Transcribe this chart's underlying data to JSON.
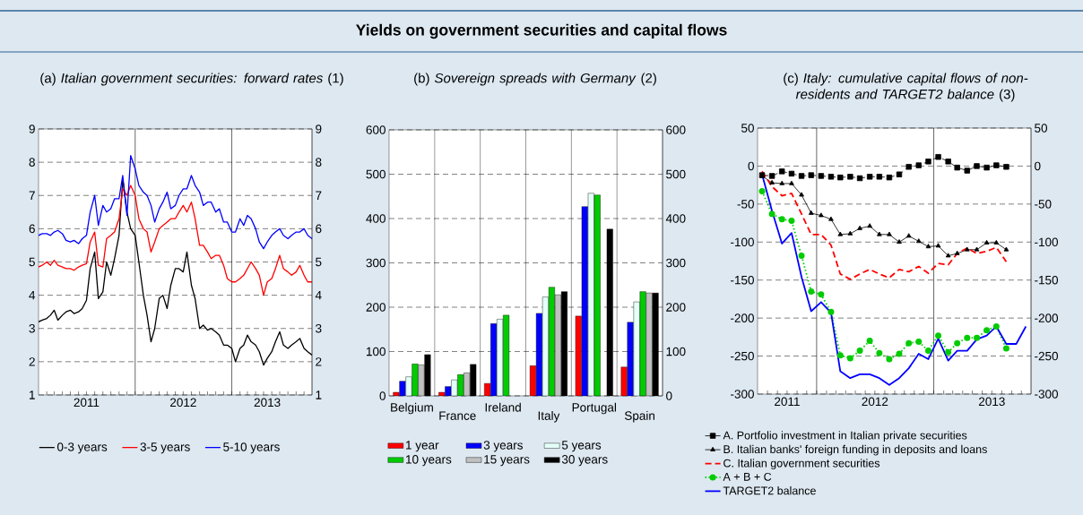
{
  "chart_data": [
    {
      "type": "line",
      "subtitle": "(a) *Italian government securities: forward rates* (1)",
      "x": [
        "2011-01-01",
        "2011-01-15",
        "2011-02-01",
        "2011-02-15",
        "2011-03-01",
        "2011-03-15",
        "2011-04-01",
        "2011-04-15",
        "2011-05-01",
        "2011-05-15",
        "2011-06-01",
        "2011-06-15",
        "2011-07-01",
        "2011-07-15",
        "2011-08-01",
        "2011-08-15",
        "2011-09-01",
        "2011-09-15",
        "2011-10-01",
        "2011-10-15",
        "2011-11-01",
        "2011-11-15",
        "2011-12-01",
        "2011-12-15",
        "2012-01-01",
        "2012-01-15",
        "2012-02-01",
        "2012-02-15",
        "2012-03-01",
        "2012-03-15",
        "2012-04-01",
        "2012-04-15",
        "2012-05-01",
        "2012-05-15",
        "2012-06-01",
        "2012-06-15",
        "2012-07-01",
        "2012-07-15",
        "2012-08-01",
        "2012-08-15",
        "2012-09-01",
        "2012-09-15",
        "2012-10-01",
        "2012-10-15",
        "2012-11-01",
        "2012-11-15",
        "2012-12-01",
        "2012-12-15",
        "2013-01-01",
        "2013-01-15",
        "2013-02-01",
        "2013-02-15",
        "2013-03-01",
        "2013-03-15",
        "2013-04-01",
        "2013-04-15",
        "2013-05-01",
        "2013-05-15",
        "2013-06-01",
        "2013-06-15",
        "2013-07-01",
        "2013-07-15",
        "2013-08-01",
        "2013-08-15",
        "2013-09-01",
        "2013-09-15",
        "2013-10-01",
        "2013-10-15",
        "2013-10-31"
      ],
      "series": [
        {
          "name": "0-3 years",
          "color": "#000000",
          "values": [
            3.2,
            3.25,
            3.3,
            3.4,
            3.55,
            3.25,
            3.4,
            3.5,
            3.55,
            3.45,
            3.5,
            3.6,
            3.85,
            4.8,
            5.3,
            3.9,
            4.1,
            5.0,
            4.6,
            5.1,
            5.8,
            7.5,
            6.5,
            6.0,
            5.8,
            5.0,
            4.0,
            3.4,
            2.6,
            3.0,
            3.9,
            4.0,
            3.6,
            4.3,
            4.8,
            4.8,
            4.7,
            5.3,
            4.3,
            3.9,
            3.0,
            3.1,
            2.95,
            3.0,
            2.9,
            2.8,
            2.5,
            2.5,
            2.4,
            2.0,
            2.4,
            2.5,
            2.8,
            2.6,
            2.5,
            2.3,
            1.9,
            2.1,
            2.3,
            2.6,
            2.9,
            2.5,
            2.4,
            2.5,
            2.6,
            2.7,
            2.4,
            2.3,
            2.2
          ]
        },
        {
          "name": "3-5 years",
          "color": "#ff0000",
          "values": [
            4.85,
            4.9,
            5.0,
            4.9,
            5.05,
            4.9,
            4.85,
            4.8,
            4.8,
            4.75,
            4.85,
            4.9,
            4.95,
            5.6,
            5.9,
            4.9,
            4.85,
            5.7,
            5.8,
            5.9,
            6.3,
            7.2,
            7.0,
            7.3,
            7.0,
            6.3,
            6.0,
            5.9,
            5.3,
            5.6,
            6.0,
            6.1,
            6.2,
            6.3,
            6.3,
            6.5,
            6.7,
            6.5,
            6.8,
            6.3,
            5.5,
            5.5,
            5.3,
            5.1,
            5.2,
            5.2,
            4.9,
            4.5,
            4.4,
            4.4,
            4.5,
            4.6,
            4.8,
            5.0,
            4.8,
            4.6,
            4.0,
            4.4,
            4.5,
            4.8,
            5.2,
            4.8,
            4.7,
            4.6,
            4.7,
            4.9,
            4.6,
            4.4,
            4.4
          ]
        },
        {
          "name": "5-10 years",
          "color": "#0000ff",
          "values": [
            5.8,
            5.85,
            5.85,
            5.8,
            5.9,
            5.95,
            5.85,
            5.65,
            5.6,
            5.65,
            5.55,
            5.7,
            5.8,
            6.5,
            7.0,
            6.1,
            6.7,
            6.5,
            6.6,
            6.9,
            6.9,
            7.6,
            6.4,
            8.2,
            7.8,
            7.3,
            7.1,
            7.0,
            6.7,
            6.2,
            6.6,
            6.8,
            7.1,
            6.6,
            6.7,
            7.0,
            7.2,
            7.2,
            7.6,
            7.3,
            7.1,
            6.7,
            6.8,
            6.8,
            6.5,
            6.6,
            6.2,
            6.2,
            5.9,
            5.9,
            6.3,
            6.1,
            6.4,
            6.3,
            6.0,
            5.6,
            5.4,
            5.6,
            5.8,
            5.9,
            6.0,
            5.8,
            5.7,
            5.8,
            5.9,
            5.9,
            6.0,
            5.8,
            5.7
          ]
        }
      ],
      "xlim": [
        "2011-01-01",
        "2013-10-31"
      ],
      "xticks": [
        {
          "value": "2011-07-01",
          "label": "2011"
        },
        {
          "value": "2012-01-01",
          "label": null
        },
        {
          "value": "2012-07-01",
          "label": "2012"
        },
        {
          "value": "2013-01-01",
          "label": null
        },
        {
          "value": "2013-05-15",
          "label": "2013"
        }
      ],
      "ylim": [
        1,
        9
      ],
      "yticks": [
        1,
        2,
        3,
        4,
        5,
        6,
        7,
        8,
        9
      ],
      "y2lim": [
        1,
        9
      ],
      "y2ticks": [
        1,
        2,
        3,
        4,
        5,
        6,
        7,
        8,
        9
      ],
      "grid": true,
      "legend": "bottom",
      "marker": "none",
      "line_style": "solid"
    },
    {
      "type": "bar",
      "title": "Yields on government securities and capital flows",
      "subtitle": "(b) *Sovereign spreads with Germany* (2)",
      "categories": [
        "Belgium",
        "France",
        "Ireland",
        "Italy",
        "Portugal",
        "Spain"
      ],
      "series": [
        {
          "name": "1 year",
          "color": "#ff0000",
          "values": [
            8,
            8,
            28,
            68,
            180,
            65
          ]
        },
        {
          "name": "3 years",
          "color": "#0000ff",
          "values": [
            33,
            21,
            163,
            186,
            427,
            166
          ]
        },
        {
          "name": "5 years",
          "color": "#e4fff8",
          "values": [
            43,
            36,
            173,
            223,
            457,
            212
          ]
        },
        {
          "name": "10 years",
          "color": "#00cc00",
          "values": [
            72,
            48,
            182,
            245,
            453,
            235
          ]
        },
        {
          "name": "15 years",
          "color": "#c0c0c0",
          "values": [
            70,
            52,
            null,
            228,
            null,
            232
          ]
        },
        {
          "name": "30 years",
          "color": "#000000",
          "values": [
            93,
            71,
            null,
            235,
            376,
            232
          ]
        }
      ],
      "ylim": [
        0,
        600
      ],
      "yticks": [
        0,
        100,
        200,
        300,
        400,
        500,
        600
      ],
      "y2lim": [
        0,
        600
      ],
      "y2ticks": [
        0,
        100,
        200,
        300,
        400,
        500,
        600
      ],
      "grid": true,
      "legend": "bottom"
    },
    {
      "type": "line",
      "subtitle": "(c) *Italy: cumulative capital flows of non-residents and TARGET2 balance* (3)",
      "x": [
        "2011-07-15",
        "2011-08-15",
        "2011-09-15",
        "2011-10-15",
        "2011-11-15",
        "2011-12-15",
        "2012-01-15",
        "2012-02-15",
        "2012-03-15",
        "2012-04-15",
        "2012-05-15",
        "2012-06-15",
        "2012-07-15",
        "2012-08-15",
        "2012-09-15",
        "2012-10-15",
        "2012-11-15",
        "2012-12-15",
        "2013-01-15",
        "2013-02-15",
        "2013-03-15",
        "2013-04-15",
        "2013-05-15",
        "2013-06-15",
        "2013-07-15",
        "2013-08-15",
        "2013-09-15",
        "2013-10-15"
      ],
      "series": [
        {
          "name": "A. Portfolio investment in Italian private securities",
          "color": "#000000",
          "marker": "square",
          "line_style": "dashed",
          "values": [
            -12,
            -13,
            -7,
            -10,
            -13,
            -12,
            -13,
            -14,
            -15,
            -14,
            -16,
            -14,
            -14,
            -15,
            -11,
            -1,
            1,
            6,
            12,
            6,
            -2,
            -6,
            0,
            -2,
            1,
            -1,
            null,
            null
          ]
        },
        {
          "name": "B. Italian banks' foreign funding in deposits and loans",
          "color": "#000000",
          "marker": "triangle",
          "line_style": "solid",
          "values": [
            -13,
            -22,
            -23,
            -23,
            -38,
            -62,
            -65,
            -70,
            -90,
            -89,
            -82,
            -79,
            -90,
            -90,
            -100,
            -92,
            -99,
            -106,
            -105,
            -118,
            -115,
            -110,
            -110,
            -101,
            -101,
            -110,
            null,
            null
          ]
        },
        {
          "name": "C. Italian government securities",
          "color": "#ff0000",
          "marker": "none",
          "line_style": "dashed",
          "values": [
            -7,
            -27,
            -39,
            -36,
            -63,
            -90,
            -90,
            -104,
            -142,
            -149,
            -142,
            -136,
            -142,
            -147,
            -136,
            -139,
            -132,
            -141,
            -128,
            -130,
            -115,
            -108,
            -115,
            -112,
            -107,
            -126,
            null,
            null
          ]
        },
        {
          "name": "A + B + C",
          "color": "#00cc00",
          "marker": "circle",
          "line_style": "dotted",
          "values": [
            -33,
            -63,
            -70,
            -72,
            -118,
            -165,
            -169,
            -192,
            -249,
            -253,
            -243,
            -230,
            -246,
            -254,
            -247,
            -233,
            -231,
            -243,
            -223,
            -245,
            -233,
            -226,
            -226,
            -216,
            -211,
            -240,
            null,
            null
          ]
        },
        {
          "name": "TARGET2 balance",
          "color": "#0000ff",
          "marker": "none",
          "line_style": "solid",
          "values": [
            -11,
            -59,
            -102,
            -88,
            -146,
            -191,
            -179,
            -193,
            -270,
            -279,
            -274,
            -274,
            -279,
            -288,
            -279,
            -266,
            -247,
            -254,
            -227,
            -256,
            -243,
            -243,
            -228,
            -223,
            -211,
            -234,
            -234,
            -211
          ]
        }
      ],
      "xlim": [
        "2011-07-01",
        "2013-10-31"
      ],
      "xticks": [
        {
          "value": "2011-10-01",
          "label": "2011"
        },
        {
          "value": "2012-01-01",
          "label": null
        },
        {
          "value": "2012-07-01",
          "label": "2012"
        },
        {
          "value": "2013-01-01",
          "label": null
        },
        {
          "value": "2013-07-01",
          "label": "2013"
        }
      ],
      "ylim": [
        -300,
        50
      ],
      "yticks": [
        -300,
        -250,
        -200,
        -150,
        -100,
        -50,
        0,
        50
      ],
      "y2lim": [
        -300,
        50
      ],
      "y2ticks": [
        -300,
        -250,
        -200,
        -150,
        -100,
        -50,
        0,
        50
      ],
      "grid": true,
      "legend": "bottom"
    }
  ]
}
